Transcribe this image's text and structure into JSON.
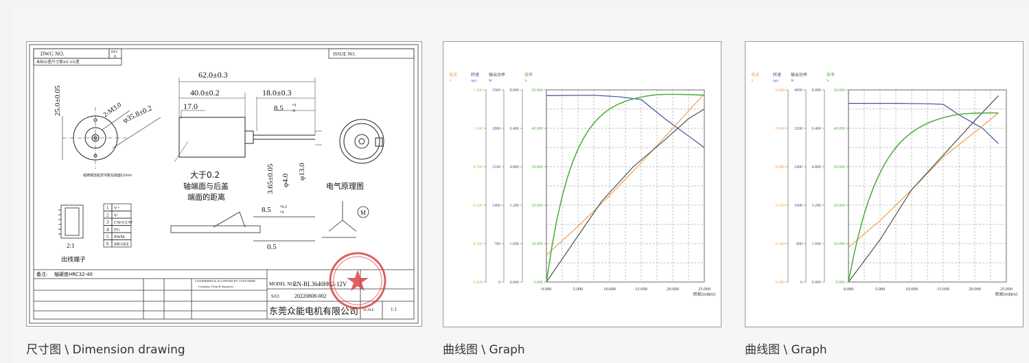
{
  "gallery": {
    "items": [
      {
        "caption": "尺寸图 \\ Dimension drawing"
      },
      {
        "caption": "曲线图 \\ Graph"
      },
      {
        "caption": "曲线图 \\ Graph"
      }
    ]
  },
  "drawing": {
    "dwg_no_label": "DWG NO.",
    "rev_label": "REV",
    "rev_value": "0",
    "issue_label": "ISSUE NO.",
    "tolerance_note": "未标公差尺寸按±0.1公差",
    "dims": {
      "d62": "62.0±0.3",
      "d40": "40.0±0.2",
      "d18": "18.0±0.3",
      "d17": "17.0",
      "d25": "25.0±0.05",
      "m3": "2-M3.0",
      "d358": "φ35.8±0.2",
      "d85": "8.5",
      "d365": "3.65±0.05",
      "d4": "φ4.0",
      "d13": "φ13.0",
      "d85b": "8.5",
      "d05": "0.5"
    },
    "notes": {
      "gt02": "大于0.2",
      "gap_line1": "轴端面与后盖",
      "gap_line2": "端面的距离",
      "circuit": "电气原理图",
      "terminal": "出线端子",
      "ratio": "2:1",
      "remark_label": "备注:",
      "remark": "轴硬度HRC32-40",
      "label_note": "铭牌或自贴非字距在底面12mm"
    },
    "pins": [
      {
        "no": "1",
        "name": "V+"
      },
      {
        "no": "2",
        "name": "V-"
      },
      {
        "no": "3",
        "name": "CW/CCW"
      },
      {
        "no": "4",
        "name": "FG"
      },
      {
        "no": "5",
        "name": "PWM"
      },
      {
        "no": "6",
        "name": "BRAKE"
      }
    ],
    "title_block": {
      "model_label": "MODEL NO.:",
      "model": "ZN-BL3640H02-12V",
      "sn_label": "S/O:",
      "sn": "20220808-002",
      "company": "东莞众能电机有限公司",
      "confirm": "CONFIRMED & ACCEPTED BY CUSTOMER",
      "confirm2": "Company Chop & Signature",
      "scale_label": "SCALE",
      "scale": "1:1"
    }
  },
  "graphs": {
    "axis_headers": [
      "电流\nA",
      "转速\nrpm",
      "输出功率\nW",
      "效率\n%"
    ],
    "x_label": "转矩(mNm)",
    "chart1": {
      "current_ticks": [
        "0.000",
        "0.260",
        "0.520",
        "0.780",
        "1.040",
        "1.300"
      ],
      "speed_ticks": [
        "0",
        "700",
        "1400",
        "2100",
        "2800",
        "3500"
      ],
      "power_ticks": [
        "0.000",
        "1.600",
        "3.200",
        "4.800",
        "6.400",
        "8.000"
      ],
      "eff_ticks": [
        "0.000",
        "10.000",
        "20.000",
        "30.000",
        "40.000",
        "50.000"
      ],
      "x_ticks": [
        "0.000",
        "5.000",
        "10.000",
        "15.000",
        "20.000",
        "25.000"
      ]
    },
    "chart2": {
      "current_ticks": [
        "0.000",
        "0.160",
        "0.320",
        "0.480",
        "0.640",
        "0.800"
      ],
      "speed_ticks": [
        "0",
        "800",
        "1600",
        "2400",
        "3200",
        "4000"
      ],
      "power_ticks": [
        "0.000",
        "1.600",
        "3.200",
        "4.800",
        "6.400",
        "8.000"
      ],
      "eff_ticks": [
        "0.000",
        "10.000",
        "20.000",
        "30.000",
        "40.000",
        "50.000"
      ],
      "x_ticks": [
        "0.000",
        "5.000",
        "10.000",
        "15.000",
        "20.000",
        "25.000"
      ]
    },
    "colors": {
      "current": "#f0a050",
      "speed": "#4050a0",
      "power": "#505050",
      "efficiency": "#50b040"
    }
  }
}
